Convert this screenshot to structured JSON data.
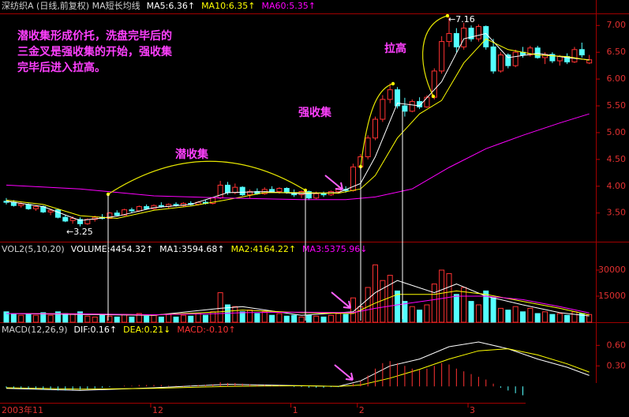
{
  "chart_data": [
    {
      "type": "candlestick",
      "title": "深纺织A (日线,前复权) MA短长均线",
      "categories": [
        "2003年11",
        null,
        null,
        null,
        null,
        null,
        null,
        null,
        null,
        null,
        null,
        null,
        null,
        null,
        null,
        null,
        null,
        null,
        null,
        null,
        "12",
        null,
        null,
        null,
        null,
        null,
        null,
        null,
        null,
        null,
        null,
        null,
        null,
        null,
        null,
        null,
        null,
        null,
        null,
        "1",
        null,
        null,
        null,
        null,
        null,
        null,
        null,
        null,
        "2",
        null,
        null,
        null,
        null,
        null,
        null,
        null,
        null,
        null,
        null,
        null,
        null,
        null,
        null,
        "3",
        null,
        null,
        null,
        null,
        null,
        null,
        null,
        null,
        null,
        null,
        null,
        null,
        null,
        null,
        null,
        null
      ],
      "open": [
        3.72,
        3.7,
        3.64,
        3.66,
        3.58,
        3.62,
        3.52,
        3.56,
        3.42,
        3.36,
        3.38,
        3.3,
        3.38,
        3.42,
        3.4,
        3.5,
        3.46,
        3.56,
        3.54,
        3.62,
        3.58,
        3.64,
        3.62,
        3.66,
        3.64,
        3.68,
        3.66,
        3.7,
        3.68,
        3.78,
        4.02,
        3.88,
        3.98,
        3.84,
        3.9,
        3.86,
        3.94,
        3.9,
        3.96,
        3.88,
        3.84,
        3.9,
        3.78,
        3.86,
        3.84,
        3.9,
        3.94,
        3.92,
        4.36,
        4.55,
        4.9,
        5.25,
        5.62,
        5.8,
        5.5,
        5.4,
        5.58,
        5.48,
        5.66,
        6.15,
        6.7,
        6.85,
        6.6,
        6.95,
        6.75,
        6.98,
        6.6,
        6.15,
        6.45,
        6.25,
        6.5,
        6.45,
        6.58,
        6.4,
        6.46,
        6.34,
        6.42,
        6.32,
        6.55,
        6.3
      ],
      "high": [
        3.78,
        3.74,
        3.7,
        3.68,
        3.64,
        3.64,
        3.58,
        3.58,
        3.46,
        3.44,
        3.42,
        3.4,
        3.45,
        3.48,
        3.52,
        3.55,
        3.58,
        3.6,
        3.64,
        3.66,
        3.66,
        3.7,
        3.68,
        3.7,
        3.7,
        3.72,
        3.72,
        3.74,
        3.8,
        4.1,
        4.08,
        4.05,
        4.0,
        3.94,
        3.96,
        3.98,
        4.0,
        3.98,
        3.98,
        3.94,
        3.92,
        3.92,
        3.9,
        3.9,
        3.92,
        3.98,
        4.0,
        4.42,
        4.6,
        4.95,
        5.3,
        5.7,
        5.92,
        5.85,
        5.65,
        5.62,
        5.66,
        5.7,
        6.2,
        6.8,
        7.16,
        6.95,
        7.05,
        7.0,
        7.02,
        7.0,
        6.75,
        6.5,
        6.48,
        6.55,
        6.6,
        6.62,
        6.62,
        6.5,
        6.5,
        6.45,
        6.48,
        6.6,
        6.68,
        6.45
      ],
      "low": [
        3.66,
        3.62,
        3.6,
        3.56,
        3.54,
        3.5,
        3.46,
        3.4,
        3.33,
        3.3,
        3.25,
        3.28,
        3.34,
        3.38,
        3.39,
        3.44,
        3.45,
        3.5,
        3.52,
        3.56,
        3.56,
        3.6,
        3.58,
        3.62,
        3.62,
        3.64,
        3.64,
        3.66,
        3.66,
        3.76,
        3.84,
        3.85,
        3.82,
        3.78,
        3.84,
        3.84,
        3.88,
        3.86,
        3.86,
        3.8,
        3.78,
        3.74,
        3.76,
        3.8,
        3.82,
        3.86,
        3.88,
        3.9,
        4.3,
        4.5,
        4.86,
        5.2,
        5.55,
        5.45,
        5.3,
        5.38,
        5.44,
        5.46,
        5.62,
        6.1,
        6.6,
        6.5,
        6.55,
        6.7,
        6.7,
        6.55,
        6.1,
        6.12,
        6.2,
        6.22,
        6.4,
        6.42,
        6.38,
        6.28,
        6.3,
        6.25,
        6.28,
        6.3,
        6.4,
        6.28
      ],
      "close": [
        3.7,
        3.64,
        3.67,
        3.58,
        3.62,
        3.52,
        3.55,
        3.42,
        3.35,
        3.4,
        3.3,
        3.38,
        3.42,
        3.4,
        3.5,
        3.46,
        3.56,
        3.54,
        3.62,
        3.58,
        3.64,
        3.62,
        3.66,
        3.64,
        3.68,
        3.66,
        3.7,
        3.68,
        3.78,
        4.02,
        3.88,
        3.98,
        3.84,
        3.9,
        3.86,
        3.94,
        3.9,
        3.96,
        3.88,
        3.84,
        3.9,
        3.78,
        3.86,
        3.84,
        3.9,
        3.94,
        3.92,
        4.36,
        4.55,
        4.9,
        5.25,
        5.62,
        5.8,
        5.5,
        5.4,
        5.58,
        5.48,
        5.66,
        6.15,
        6.7,
        6.85,
        6.6,
        6.95,
        6.75,
        6.98,
        6.6,
        6.15,
        6.45,
        6.25,
        6.5,
        6.45,
        6.58,
        6.4,
        6.46,
        6.34,
        6.42,
        6.32,
        6.55,
        6.45,
        6.36
      ],
      "up_color": "#ff3232",
      "down_color": "#54ffff",
      "series": [
        {
          "name": "MA5:6.36↑",
          "color": "#ffffff",
          "x": [
            0,
            5,
            10,
            15,
            20,
            25,
            30,
            35,
            40,
            45,
            48,
            50,
            53,
            56,
            59,
            62,
            65,
            68,
            72,
            76,
            79
          ],
          "values": [
            3.72,
            3.62,
            3.36,
            3.44,
            3.6,
            3.66,
            3.88,
            3.9,
            3.86,
            3.88,
            4.05,
            4.55,
            5.55,
            5.5,
            5.95,
            6.75,
            6.85,
            6.4,
            6.48,
            6.4,
            6.36
          ]
        },
        {
          "name": "MA10:6.35↑",
          "color": "#ffff00",
          "x": [
            0,
            5,
            10,
            15,
            20,
            25,
            30,
            35,
            40,
            45,
            48,
            50,
            53,
            56,
            59,
            62,
            65,
            68,
            72,
            76,
            79
          ],
          "values": [
            3.74,
            3.66,
            3.45,
            3.4,
            3.55,
            3.63,
            3.75,
            3.88,
            3.88,
            3.87,
            3.95,
            4.2,
            4.9,
            5.35,
            5.6,
            6.3,
            6.75,
            6.55,
            6.45,
            6.42,
            6.35
          ]
        },
        {
          "name": "MA60:5.35↑",
          "color": "#ff00ff",
          "x": [
            0,
            10,
            20,
            30,
            40,
            46,
            50,
            55,
            60,
            65,
            70,
            75,
            79
          ],
          "values": [
            4.02,
            3.95,
            3.82,
            3.78,
            3.75,
            3.75,
            3.8,
            3.95,
            4.35,
            4.7,
            4.95,
            5.18,
            5.35
          ]
        }
      ],
      "ylim": [
        2.98,
        7.21
      ],
      "yticks": [
        {
          "value": 3.5,
          "label": "3.50"
        },
        {
          "value": 4,
          "label": "4.00"
        },
        {
          "value": 4.5,
          "label": "4.50"
        },
        {
          "value": 5,
          "label": "5.00"
        },
        {
          "value": 5.5,
          "label": "5.50"
        },
        {
          "value": 6,
          "label": "6.00"
        },
        {
          "value": 6.5,
          "label": "6.50"
        },
        {
          "value": 7,
          "label": "7.00"
        }
      ],
      "annotations": {
        "note": [
          "潜收集形成价托，洗盘完毕后的",
          "三金叉是强收集的开始，强收集",
          "完毕后进入拉高。"
        ],
        "latent": "潜收集",
        "strong": "强收集",
        "pull": "拉高",
        "low": "←3.25",
        "high": "←7.16"
      }
    },
    {
      "type": "bar",
      "title": "VOL2(5,10,20)",
      "series": [
        {
          "type": "bar",
          "name": "VOLUME:4454.32↑",
          "color": "#ffffff",
          "values": [
            6000,
            5000,
            4000,
            5000,
            4000,
            5500,
            4000,
            6000,
            5000,
            4500,
            6000,
            3500,
            3000,
            4000,
            3500,
            3000,
            4500,
            3000,
            5000,
            3500,
            4000,
            3000,
            4500,
            3000,
            4000,
            3500,
            5000,
            4000,
            6000,
            17000,
            10000,
            9000,
            6000,
            7000,
            5000,
            6000,
            4000,
            5000,
            3500,
            4000,
            3000,
            4000,
            3500,
            3000,
            4000,
            5000,
            4500,
            14000,
            9000,
            20000,
            33000,
            24000,
            27000,
            18000,
            12000,
            9000,
            7000,
            10000,
            22000,
            30000,
            28000,
            16000,
            20000,
            12000,
            10000,
            18000,
            14000,
            8000,
            7000,
            9000,
            6000,
            8000,
            5000,
            6000,
            4500,
            5000,
            4000,
            6000,
            5000,
            4454.32
          ]
        },
        {
          "type": "line",
          "name": "MA1:3594.68↑",
          "color": "#ffffff",
          "x": [
            0,
            10,
            20,
            29,
            32,
            40,
            47,
            50,
            53,
            58,
            61,
            65,
            70,
            75,
            79
          ],
          "values": [
            5000,
            4500,
            4000,
            8000,
            9000,
            4000,
            6000,
            17000,
            24000,
            17000,
            22000,
            15000,
            10000,
            5500,
            3594.68
          ]
        },
        {
          "type": "line",
          "name": "MA2:4164.22↑",
          "color": "#ffff00",
          "x": [
            0,
            10,
            20,
            29,
            32,
            40,
            47,
            50,
            53,
            58,
            61,
            65,
            70,
            75,
            79
          ],
          "values": [
            5000,
            4800,
            4200,
            6000,
            7000,
            5500,
            5000,
            11000,
            16000,
            16000,
            18000,
            16000,
            12000,
            8000,
            4164.22
          ]
        },
        {
          "type": "line",
          "name": "MA3:5375.96↓",
          "color": "#ff00ff",
          "x": [
            0,
            10,
            20,
            29,
            32,
            40,
            47,
            50,
            53,
            58,
            61,
            65,
            70,
            75,
            79
          ],
          "values": [
            5000,
            4800,
            4300,
            5000,
            5500,
            5800,
            5500,
            8000,
            10000,
            13000,
            15000,
            15000,
            13000,
            9000,
            5375.96
          ]
        }
      ],
      "ylim": [
        0,
        40000
      ],
      "yticks": [
        15000,
        30000
      ]
    },
    {
      "type": "bar",
      "title": "MACD(12,26,9)",
      "series": [
        {
          "type": "line",
          "name": "DIF:0.16↑",
          "color": "#ffffff",
          "x": [
            0,
            10,
            20,
            30,
            40,
            45,
            48,
            52,
            56,
            60,
            64,
            68,
            72,
            76,
            79
          ],
          "values": [
            -0.03,
            -0.06,
            -0.02,
            0.03,
            0.01,
            0.0,
            0.08,
            0.3,
            0.4,
            0.58,
            0.65,
            0.55,
            0.4,
            0.28,
            0.16
          ]
        },
        {
          "type": "line",
          "name": "DEA:0.21↓",
          "color": "#ffff00",
          "x": [
            0,
            10,
            20,
            30,
            40,
            45,
            48,
            52,
            56,
            60,
            64,
            68,
            72,
            76,
            79
          ],
          "values": [
            -0.02,
            -0.04,
            -0.03,
            0.0,
            0.01,
            0.0,
            0.02,
            0.12,
            0.25,
            0.4,
            0.52,
            0.55,
            0.46,
            0.33,
            0.21
          ]
        },
        {
          "type": "bar",
          "name": "MACD:-0.10↑",
          "color": "#ff3232",
          "negative_color": "#54ffff",
          "values": [
            -0.02,
            -0.03,
            -0.03,
            -0.04,
            -0.04,
            -0.05,
            -0.05,
            -0.06,
            -0.06,
            -0.05,
            -0.05,
            -0.04,
            -0.03,
            -0.02,
            -0.01,
            0.0,
            0.01,
            0.01,
            0.02,
            0.02,
            0.02,
            0.02,
            0.01,
            0.01,
            0.01,
            0.01,
            0.02,
            0.02,
            0.03,
            0.06,
            0.05,
            0.05,
            0.04,
            0.03,
            0.02,
            0.02,
            0.01,
            0.01,
            0.0,
            -0.01,
            -0.01,
            -0.02,
            -0.02,
            -0.02,
            -0.01,
            -0.01,
            0.0,
            0.04,
            0.08,
            0.16,
            0.26,
            0.34,
            0.37,
            0.34,
            0.3,
            0.26,
            0.24,
            0.26,
            0.3,
            0.34,
            0.32,
            0.26,
            0.22,
            0.18,
            0.14,
            0.1,
            0.04,
            -0.02,
            -0.06,
            -0.1,
            -0.13,
            -0.14,
            -0.12,
            -0.11,
            -0.13,
            -0.12,
            -0.1,
            -0.08,
            -0.11,
            -0.1
          ]
        }
      ],
      "ylim": [
        -0.24,
        0.8
      ],
      "yticks": [
        {
          "value": 0.3,
          "label": "0.30"
        },
        {
          "value": 0.6,
          "label": "0.60"
        }
      ]
    }
  ]
}
